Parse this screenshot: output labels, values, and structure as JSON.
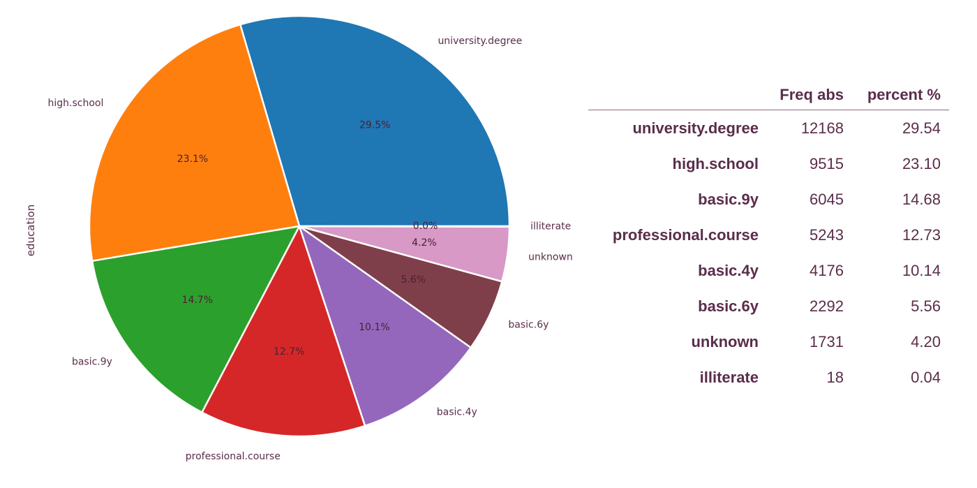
{
  "chart_data": {
    "type": "pie",
    "ylabel": "education",
    "slices": [
      {
        "label": "university.degree",
        "value": 29.54,
        "pct_label": "29.5%",
        "color": "#1f77b4"
      },
      {
        "label": "high.school",
        "value": 23.1,
        "pct_label": "23.1%",
        "color": "#ff7f0e"
      },
      {
        "label": "basic.9y",
        "value": 14.68,
        "pct_label": "14.7%",
        "color": "#2ca02c"
      },
      {
        "label": "professional.course",
        "value": 12.73,
        "pct_label": "12.7%",
        "color": "#d62728"
      },
      {
        "label": "basic.4y",
        "value": 10.14,
        "pct_label": "10.1%",
        "color": "#9467bd"
      },
      {
        "label": "basic.6y",
        "value": 5.56,
        "pct_label": "5.6%",
        "color": "#7f3f4a"
      },
      {
        "label": "unknown",
        "value": 4.2,
        "pct_label": "4.2%",
        "color": "#d899c6"
      },
      {
        "label": "illiterate",
        "value": 0.04,
        "pct_label": "0.0%",
        "color": "#e377c2"
      }
    ],
    "start_angle_deg": 0,
    "direction": "counterclockwise"
  },
  "table": {
    "headers": [
      "",
      "Freq abs",
      "percent %"
    ],
    "rows": [
      [
        "university.degree",
        "12168",
        "29.54"
      ],
      [
        "high.school",
        "9515",
        "23.10"
      ],
      [
        "basic.9y",
        "6045",
        "14.68"
      ],
      [
        "professional.course",
        "5243",
        "12.73"
      ],
      [
        "basic.4y",
        "4176",
        "10.14"
      ],
      [
        "basic.6y",
        "2292",
        "5.56"
      ],
      [
        "unknown",
        "1731",
        "4.20"
      ],
      [
        "illiterate",
        "18",
        "0.04"
      ]
    ]
  },
  "colors": {
    "text": "#5a2d4a",
    "pct_text": "#4a2030"
  }
}
